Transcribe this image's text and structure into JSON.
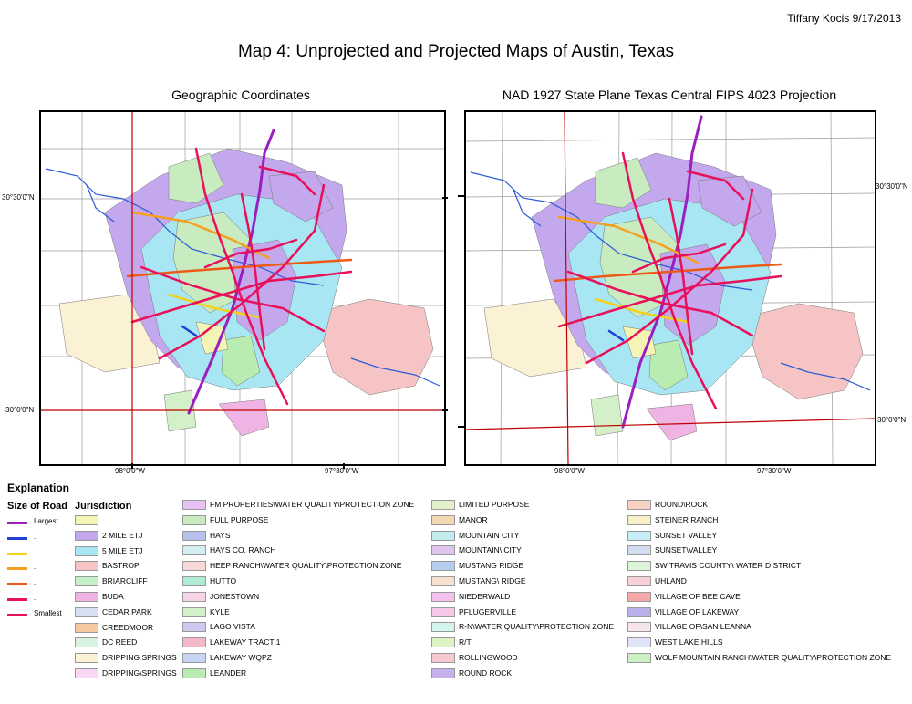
{
  "header": {
    "author": "Tiffany Kocis 9/17/2013",
    "title": "Map 4: Unprojected and Projected Maps of Austin, Texas"
  },
  "maps": {
    "left": {
      "title": "Geographic Coordinates",
      "lat_labels": [
        "30°30'0\"N",
        "30°0'0\"N"
      ],
      "lon_labels": [
        "98°0'0\"W",
        "97°30'0\"W"
      ]
    },
    "right": {
      "title": "NAD 1927 State Plane Texas Central FIPS 4023 Projection",
      "lat_labels": [
        "30°30'0\"N",
        "30°0'0\"N"
      ],
      "lon_labels": [
        "98°0'0\"W",
        "97°30'0\"W"
      ]
    }
  },
  "legend": {
    "title": "Explanation",
    "road_size_title": "Size of Road",
    "jurisdiction_title": "Jurisdiction",
    "road_sizes": [
      {
        "label": "Largest",
        "color": "#9a1fbf"
      },
      {
        "label": ".",
        "color": "#1f3fd6"
      },
      {
        "label": ".",
        "color": "#f2d21a"
      },
      {
        "label": ".",
        "color": "#f5a020"
      },
      {
        "label": ".",
        "color": "#ee5a16"
      },
      {
        "label": ".",
        "color": "#e8105a"
      },
      {
        "label": "Smallest",
        "color": "#e8105a"
      }
    ],
    "columns": [
      [
        {
          "label": "",
          "color": "#f4f4b4"
        },
        {
          "label": "2 MILE ETJ",
          "color": "#c4a8ee"
        },
        {
          "label": "5 MILE ETJ",
          "color": "#a8e6f4"
        },
        {
          "label": "BASTROP",
          "color": "#f6c4c4"
        },
        {
          "label": "BRIARCLIFF",
          "color": "#c4f0c8"
        },
        {
          "label": "BUDA",
          "color": "#f0b4e4"
        },
        {
          "label": "CEDAR PARK",
          "color": "#d8e0f4"
        },
        {
          "label": "CREEDMOOR",
          "color": "#f4c8a0"
        },
        {
          "label": "DC REED",
          "color": "#d8f4e0"
        },
        {
          "label": "DRIPPING SPRINGS",
          "color": "#fbf1d4"
        },
        {
          "label": "DRIPPING\\SPRINGS",
          "color": "#f8d8f4"
        }
      ],
      [
        {
          "label": "FM PROPERTIES\\WATER QUALITY\\PROTECTION ZONE",
          "color": "#e8c0f4"
        },
        {
          "label": "FULL PURPOSE",
          "color": "#c8ecc0"
        },
        {
          "label": "HAYS",
          "color": "#b8c0ec"
        },
        {
          "label": "HAYS CO. RANCH",
          "color": "#d4eef4"
        },
        {
          "label": "HEEP RANCH\\WATER QUALITY\\PROTECTION ZONE",
          "color": "#f8d8d8"
        },
        {
          "label": "HUTTO",
          "color": "#b0ecd4"
        },
        {
          "label": "JONESTOWN",
          "color": "#f8d4e8"
        },
        {
          "label": "KYLE",
          "color": "#d4f0c8"
        },
        {
          "label": "LAGO VISTA",
          "color": "#d0c8f0"
        },
        {
          "label": "LAKEWAY TRACT 1",
          "color": "#f4b8c8"
        },
        {
          "label": "LAKEWAY WQPZ",
          "color": "#c8d4f4"
        },
        {
          "label": "LEANDER",
          "color": "#b8ecb0"
        }
      ],
      [
        {
          "label": "LIMITED PURPOSE",
          "color": "#e4f0c8"
        },
        {
          "label": "MANOR",
          "color": "#f4d8b4"
        },
        {
          "label": "MOUNTAIN CITY",
          "color": "#c4ecec"
        },
        {
          "label": "MOUNTAIN\\ CITY",
          "color": "#e0c4f0"
        },
        {
          "label": "MUSTANG RIDGE",
          "color": "#b8ccf0"
        },
        {
          "label": "MUSTANG\\ RIDGE",
          "color": "#f8e0d0"
        },
        {
          "label": "NIEDERWALD",
          "color": "#f4c0f0"
        },
        {
          "label": "PFLUGERVILLE",
          "color": "#f8c8e8"
        },
        {
          "label": "R-N\\WATER QUALITY\\PROTECTION ZONE",
          "color": "#d4f4f0"
        },
        {
          "label": "R/T",
          "color": "#dcf4c4"
        },
        {
          "label": "ROLLINGWOOD",
          "color": "#f8c8d0"
        },
        {
          "label": "ROUND ROCK",
          "color": "#c8b0ec"
        }
      ],
      [
        {
          "label": "ROUND\\ROCK",
          "color": "#f8d0c4"
        },
        {
          "label": "STEINER RANCH",
          "color": "#f8f0c8"
        },
        {
          "label": "SUNSET VALLEY",
          "color": "#c8eef8"
        },
        {
          "label": "SUNSET\\VALLEY",
          "color": "#d4dcf0"
        },
        {
          "label": "SW TRAVIS COUNTY\\ WATER DISTRICT",
          "color": "#dcf4d8"
        },
        {
          "label": "UHLAND",
          "color": "#f8d0d8"
        },
        {
          "label": "VILLAGE OF BEE CAVE",
          "color": "#f4a8a8"
        },
        {
          "label": "VILLAGE OF LAKEWAY",
          "color": "#b8b0e8"
        },
        {
          "label": "VILLAGE OF\\SAN LEANNA",
          "color": "#f8e4ec"
        },
        {
          "label": "WEST LAKE HILLS",
          "color": "#e0e4f8"
        },
        {
          "label": "WOLF MOUNTAIN RANCH\\WATER QUALITY\\PROTECTION ZONE",
          "color": "#ccf0c4"
        }
      ]
    ]
  }
}
